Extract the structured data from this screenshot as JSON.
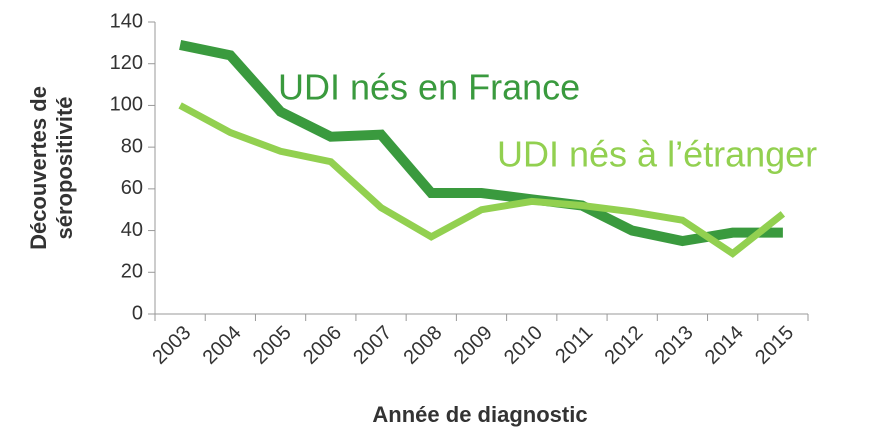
{
  "chart_data": {
    "type": "line",
    "y_label": [
      "Découvertes de",
      "séropositivité"
    ],
    "x_label": "Année de diagnostic",
    "categories": [
      "2003",
      "2004",
      "2005",
      "2006",
      "2007",
      "2008",
      "2009",
      "2010",
      "2011",
      "2012",
      "2013",
      "2014",
      "2015"
    ],
    "series": [
      {
        "name": "UDI nés en France",
        "color": "#3a9a3e",
        "values": [
          129,
          124,
          97,
          85,
          86,
          58,
          58,
          55,
          52,
          40,
          35,
          39,
          39
        ]
      },
      {
        "name": "UDI nés à l’étranger",
        "color": "#92d050",
        "values": [
          100,
          87,
          78,
          73,
          51,
          37,
          50,
          54,
          52,
          49,
          45,
          29,
          48
        ]
      }
    ],
    "ylim": [
      0,
      140
    ],
    "yticks": [
      0,
      20,
      40,
      60,
      80,
      100,
      120,
      140
    ]
  }
}
